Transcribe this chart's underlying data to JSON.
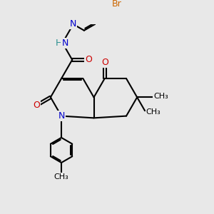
{
  "bg_color": "#e8e8e8",
  "bond_color": "#000000",
  "bond_width": 1.5,
  "atom_colors": {
    "N_blue": "#0000cc",
    "O_red": "#cc0000",
    "Br": "#cc6600",
    "H_teal": "#2a9090"
  },
  "font_size": 9,
  "fig_width": 3.0,
  "fig_height": 3.0,
  "dpi": 100,
  "xlim": [
    0,
    10
  ],
  "ylim": [
    0,
    10
  ]
}
